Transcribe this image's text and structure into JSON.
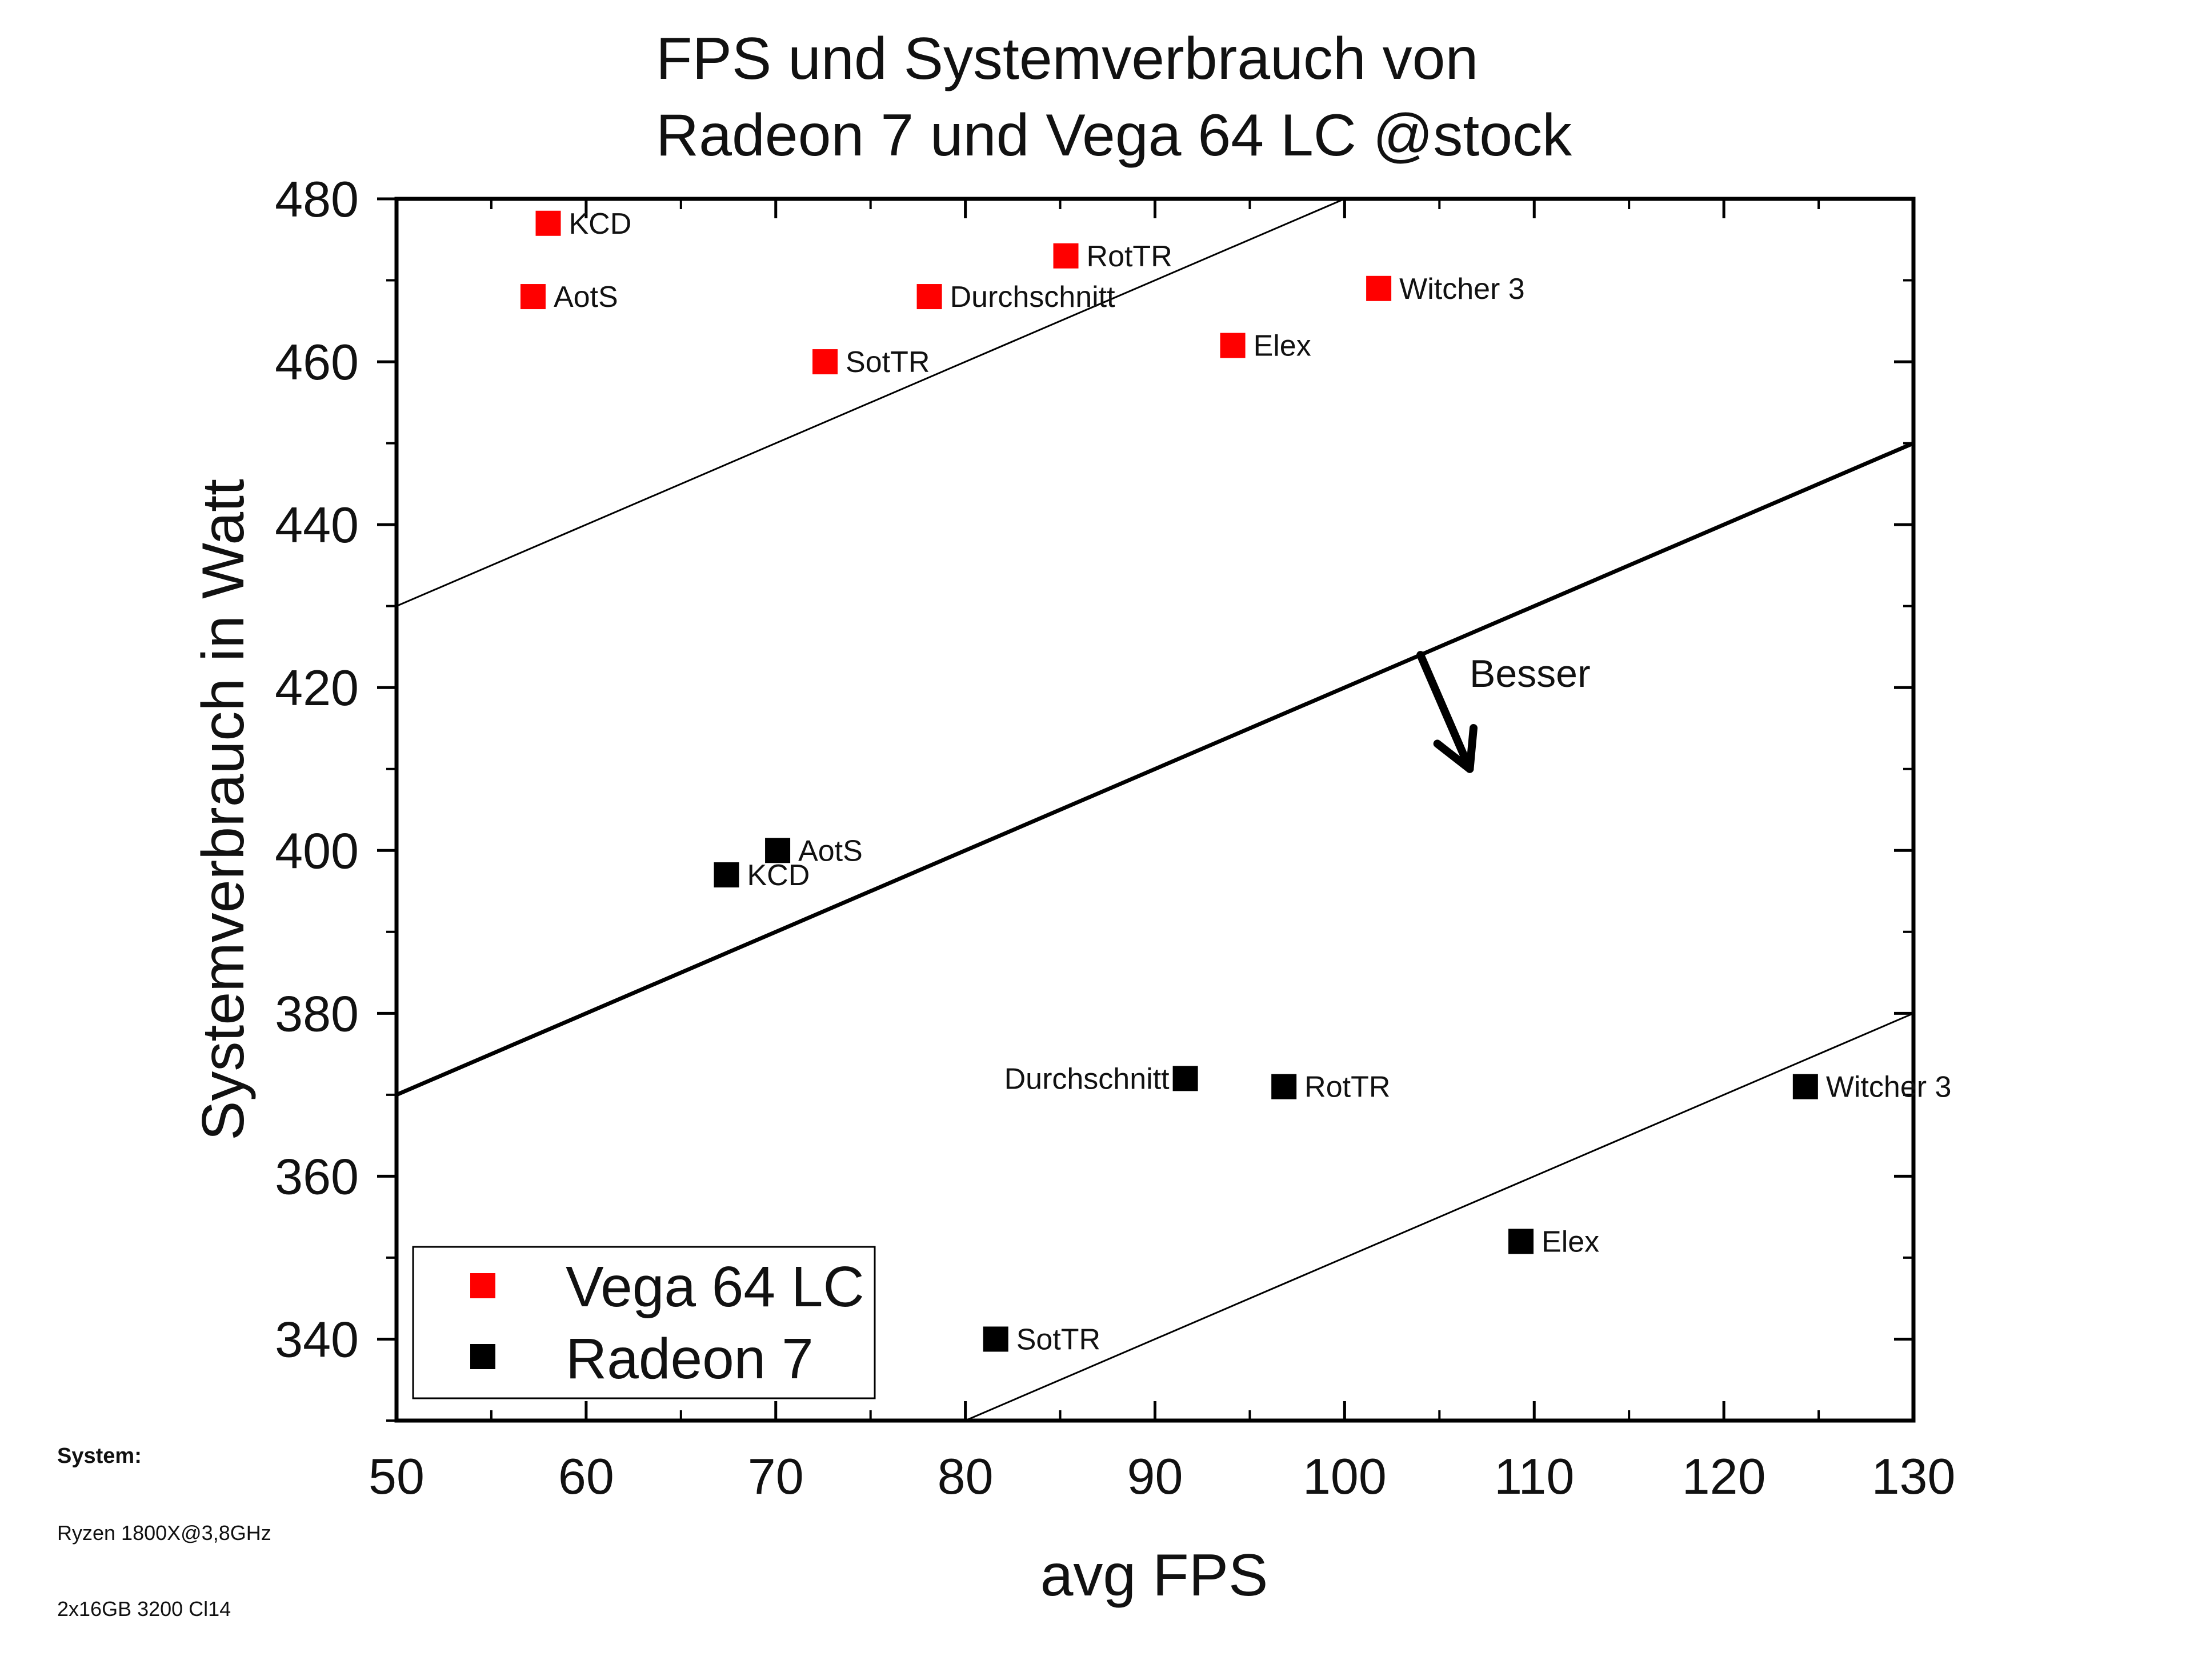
{
  "chart_data": {
    "type": "scatter",
    "title_lines": [
      "FPS und Systemverbrauch von",
      "Radeon 7 und Vega 64 LC @stock"
    ],
    "xlabel": "avg FPS",
    "ylabel": "Systemverbrauch in Watt",
    "xlim": [
      50,
      130
    ],
    "ylim": [
      330,
      480
    ],
    "x_ticks": [
      50,
      60,
      70,
      80,
      90,
      100,
      110,
      120,
      130
    ],
    "y_ticks": [
      340,
      360,
      380,
      400,
      420,
      440,
      460,
      480
    ],
    "grid": false,
    "legend_position": "bottom-left",
    "series": [
      {
        "name": "Vega 64 LC",
        "color": "#ff0000",
        "marker": "square",
        "points": [
          {
            "label": "KCD",
            "x": 58,
            "y": 477
          },
          {
            "label": "AotS",
            "x": 57.2,
            "y": 468
          },
          {
            "label": "SotTR",
            "x": 72.6,
            "y": 460
          },
          {
            "label": "Durchschnitt",
            "x": 78.1,
            "y": 468
          },
          {
            "label": "RotTR",
            "x": 85.3,
            "y": 473
          },
          {
            "label": "Elex",
            "x": 94.1,
            "y": 462
          },
          {
            "label": "Witcher 3",
            "x": 101.8,
            "y": 469
          }
        ]
      },
      {
        "name": "Radeon 7",
        "color": "#000000",
        "marker": "square",
        "points": [
          {
            "label": "KCD",
            "x": 67.4,
            "y": 397
          },
          {
            "label": "AotS",
            "x": 70.1,
            "y": 400
          },
          {
            "label": "SotTR",
            "x": 81.6,
            "y": 340
          },
          {
            "label": "Durchschnitt",
            "x": 91.6,
            "y": 372
          },
          {
            "label": "RotTR",
            "x": 96.8,
            "y": 371
          },
          {
            "label": "Elex",
            "x": 109.3,
            "y": 352
          },
          {
            "label": "Witcher 3",
            "x": 124.3,
            "y": 371
          }
        ]
      }
    ],
    "reference_lines": [
      {
        "from": [
          50,
          430
        ],
        "to": [
          100,
          480
        ],
        "style": "thin"
      },
      {
        "from": [
          50,
          370
        ],
        "to": [
          130,
          450
        ],
        "style": "thick"
      },
      {
        "from": [
          80,
          330
        ],
        "to": [
          130,
          380
        ],
        "style": "thin"
      }
    ],
    "annotation": {
      "text": "Besser",
      "arrow_from": [
        104,
        424
      ],
      "arrow_to": [
        106.6,
        410
      ]
    }
  },
  "system_note": {
    "heading": "System:",
    "lines": [
      "Ryzen 1800X@3,8GHz",
      "2x16GB 3200 Cl14"
    ]
  }
}
